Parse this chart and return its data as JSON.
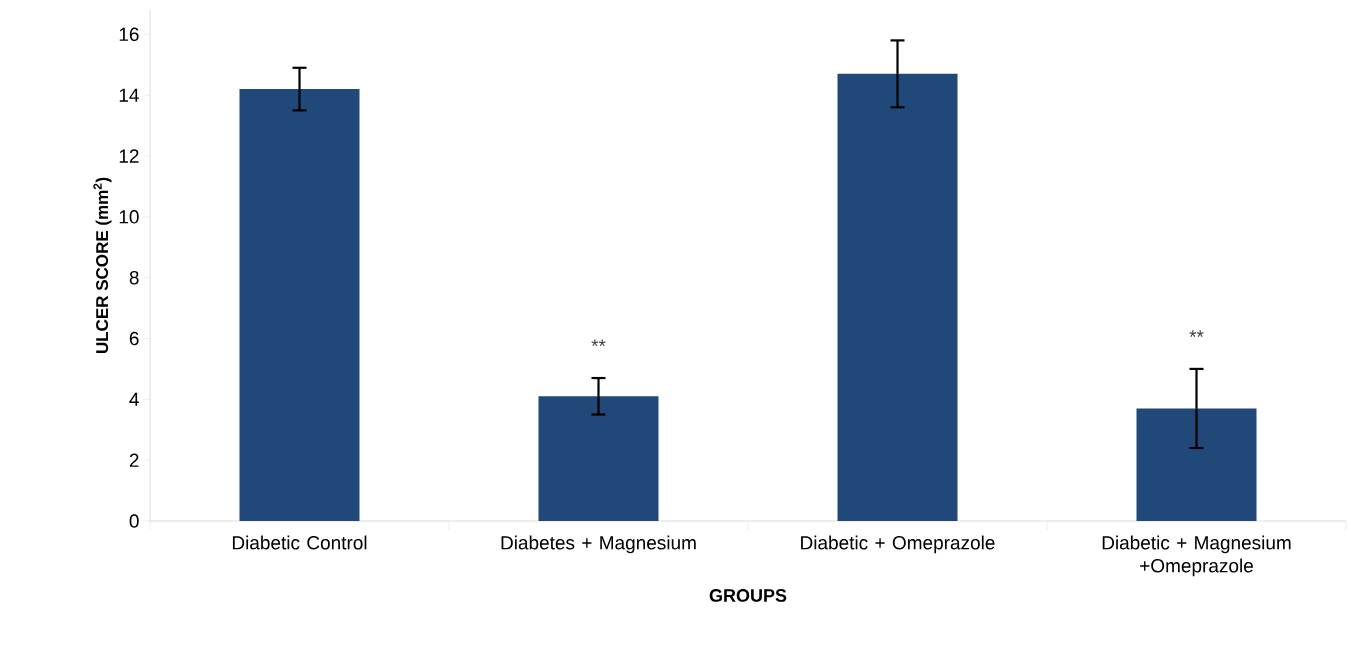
{
  "chart_data": {
    "type": "bar",
    "xlabel": "GROUPS",
    "ylabel": "ULCER SCORE (mm$^{2}$)",
    "categories": [
      "Diabetic Control",
      "Diabetes + Magnesium",
      "Diabetic + Omeprazole",
      "Diabetic + Magnesium +Omeprazole"
    ],
    "values": [
      14.2,
      4.1,
      14.7,
      3.7
    ],
    "errors": [
      0.7,
      0.6,
      1.1,
      1.3
    ],
    "color": "#20497a",
    "ylim": [
      0,
      16.8
    ],
    "yticks": [
      0,
      2,
      4,
      6,
      8,
      10,
      12,
      14,
      16
    ],
    "annotations": [
      "**",
      "**"
    ]
  }
}
